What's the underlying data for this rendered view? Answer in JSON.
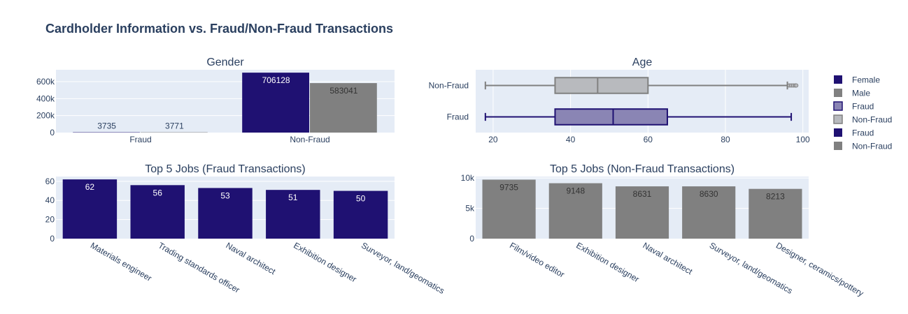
{
  "title": "Cardholder Information vs. Fraud/Non-Fraud Transactions",
  "colors": {
    "plot_bg": "#E5ECF6",
    "fraud": "#1f1172",
    "non_fraud": "#808080",
    "fraud_box_fill": "#8a85b4",
    "non_fraud_box_fill": "#b8babe",
    "text": "#2a3f5f",
    "grid": "#ffffff"
  },
  "legend": {
    "position": "right",
    "items": [
      {
        "label": "Female",
        "type": "bar",
        "color": "#1f1172"
      },
      {
        "label": "Male",
        "type": "bar",
        "color": "#808080"
      },
      {
        "label": "Fraud",
        "type": "box",
        "color": "#1f1172"
      },
      {
        "label": "Non-Fraud",
        "type": "box",
        "color": "#808080"
      },
      {
        "label": "Fraud",
        "type": "bar",
        "color": "#1f1172"
      },
      {
        "label": "Non-Fraud",
        "type": "bar",
        "color": "#808080"
      }
    ]
  },
  "chart_data": [
    {
      "type": "bar",
      "title": "Gender",
      "categories": [
        "Fraud",
        "Non-Fraud"
      ],
      "series": [
        {
          "name": "Female",
          "values": [
            3735,
            706128
          ],
          "color": "#1f1172"
        },
        {
          "name": "Male",
          "values": [
            3771,
            583041
          ],
          "color": "#808080"
        }
      ],
      "ylim": [
        0,
        740000
      ],
      "yticks": [
        0,
        200000,
        400000,
        600000
      ],
      "ytick_labels": [
        "0",
        "200k",
        "400k",
        "600k"
      ],
      "data_labels": [
        "3735",
        "706128",
        "3771",
        "583041"
      ],
      "grid": true
    },
    {
      "type": "box",
      "title": "Age",
      "orientation": "horizontal",
      "categories": [
        "Fraud",
        "Non-Fraud"
      ],
      "boxes": [
        {
          "name": "Fraud",
          "min": 18,
          "q1": 36,
          "median": 51,
          "q3": 65,
          "max": 97,
          "outliers": [],
          "color": "#1f1172",
          "fill": "#8a85b4"
        },
        {
          "name": "Non-Fraud",
          "min": 18,
          "q1": 36,
          "median": 47,
          "q3": 60,
          "max": 96,
          "outliers": [
            96.5,
            97,
            97.5,
            98,
            98.3
          ],
          "color": "#808080",
          "fill": "#b8babe"
        }
      ],
      "xlim": [
        15.5,
        101.5
      ],
      "xticks": [
        20,
        40,
        60,
        80,
        100
      ],
      "xtick_labels": [
        "20",
        "40",
        "60",
        "80",
        "100"
      ],
      "grid": true
    },
    {
      "type": "bar",
      "title": "Top 5 Jobs (Fraud Transactions)",
      "categories": [
        "Materials engineer",
        "Trading standards officer",
        "Naval architect",
        "Exhibition designer",
        "Surveyor, land/geomatics"
      ],
      "values": [
        62,
        56,
        53,
        51,
        50
      ],
      "color": "#1f1172",
      "data_labels": [
        "62",
        "56",
        "53",
        "51",
        "50"
      ],
      "ylim": [
        0,
        65
      ],
      "yticks": [
        0,
        20,
        40,
        60
      ],
      "ytick_labels": [
        "0",
        "20",
        "40",
        "60"
      ],
      "grid": true
    },
    {
      "type": "bar",
      "title": "Top 5 Jobs (Non-Fraud Transactions)",
      "categories": [
        "Film/video editor",
        "Exhibition designer",
        "Naval architect",
        "Surveyor, land/geomatics",
        "Designer, ceramics/pottery"
      ],
      "values": [
        9735,
        9148,
        8631,
        8630,
        8213
      ],
      "color": "#808080",
      "data_labels": [
        "9735",
        "9148",
        "8631",
        "8630",
        "8213"
      ],
      "ylim": [
        0,
        10250
      ],
      "yticks": [
        0,
        5000,
        10000
      ],
      "ytick_labels": [
        "0",
        "5k",
        "10k"
      ],
      "grid": true
    }
  ]
}
